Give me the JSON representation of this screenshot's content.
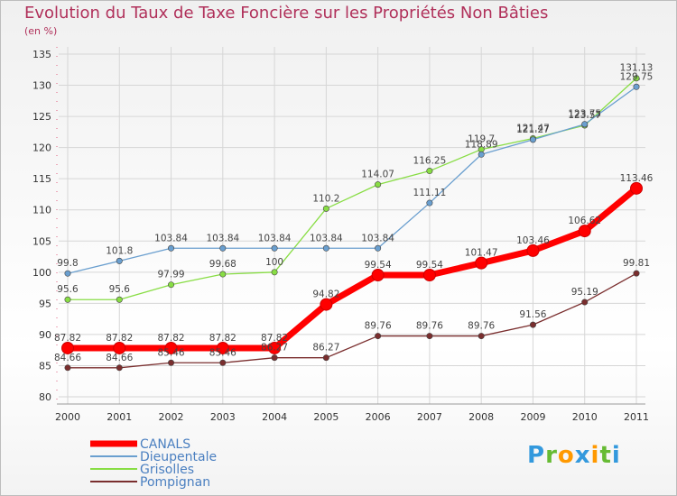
{
  "title": "Evolution du Taux de Taxe Foncière sur les Propriétés Non Bâties",
  "subtitle": "(en %)",
  "logo": "Proxiti",
  "chart_data": {
    "type": "line",
    "title": "Evolution du Taux de Taxe Foncière sur les Propriétés Non Bâties",
    "ylabel": "(en %)",
    "xlabel": "",
    "x": [
      "2000",
      "2001",
      "2002",
      "2003",
      "2004",
      "2005",
      "2006",
      "2007",
      "2008",
      "2009",
      "2010",
      "2011"
    ],
    "ylim": [
      80,
      135
    ],
    "yticks": [
      80,
      85,
      90,
      95,
      100,
      105,
      110,
      115,
      120,
      125,
      130,
      135
    ],
    "grid": true,
    "legend_position": "bottom-left",
    "series": [
      {
        "name": "CANALS",
        "color": "#ff0000",
        "values": [
          87.82,
          87.82,
          87.82,
          87.82,
          87.82,
          94.82,
          99.54,
          99.54,
          101.47,
          103.46,
          106.62,
          113.46
        ]
      },
      {
        "name": "Dieupentale",
        "color": "#6a9fcf",
        "values": [
          99.8,
          101.8,
          103.84,
          103.84,
          103.84,
          103.84,
          103.84,
          111.11,
          118.89,
          121.27,
          123.75,
          129.75
        ]
      },
      {
        "name": "Grisolles",
        "color": "#88dd44",
        "values": [
          95.6,
          95.6,
          97.99,
          99.68,
          100,
          110.2,
          114.07,
          116.25,
          119.7,
          121.47,
          123.57,
          131.13
        ]
      },
      {
        "name": "Pompignan",
        "color": "#7a2e2e",
        "values": [
          84.66,
          84.66,
          85.46,
          85.46,
          86.27,
          86.27,
          89.76,
          89.76,
          89.76,
          91.56,
          95.19,
          99.81
        ]
      }
    ],
    "value_labels": [
      [
        "87.82",
        "87.82",
        "87.82",
        "87.82",
        "87.82",
        "94.82",
        "99.54",
        "99.54",
        "101.47",
        "103.46",
        "106.62",
        "113.46"
      ],
      [
        "99.8",
        "101.8",
        "103.84",
        "103.84",
        "103.84",
        "103.84",
        "103.84",
        "111.11",
        "118.89",
        "121.27",
        "123.75",
        "129.75"
      ],
      [
        "95.6",
        "95.6",
        "97.99",
        "99.68",
        "100",
        "110.2",
        "114.07",
        "116.25",
        "119.7",
        "121.47",
        "123.57",
        "131.13"
      ],
      [
        "84.66",
        "84.66",
        "85.46",
        "85.46",
        "86.27",
        "86.27",
        "89.76",
        "89.76",
        "89.76",
        "91.56",
        "95.19",
        "99.81"
      ]
    ]
  }
}
